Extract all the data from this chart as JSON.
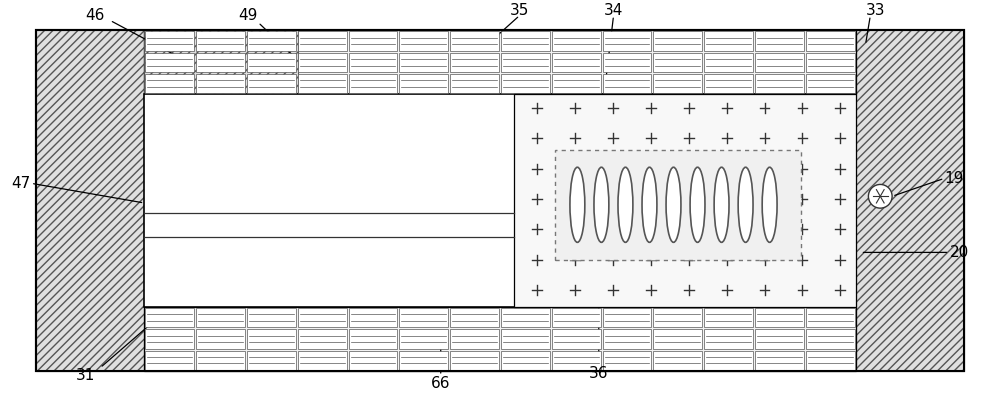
{
  "fig_width": 10.0,
  "fig_height": 3.97,
  "bg_color": "#ffffff",
  "line_color": "#000000",
  "hatch_fill": "#d8d8d8",
  "light_gray": "#f0f0f0",
  "plus_region_fill": "#f5f5f5",
  "chip_fill": "#eeeeee"
}
